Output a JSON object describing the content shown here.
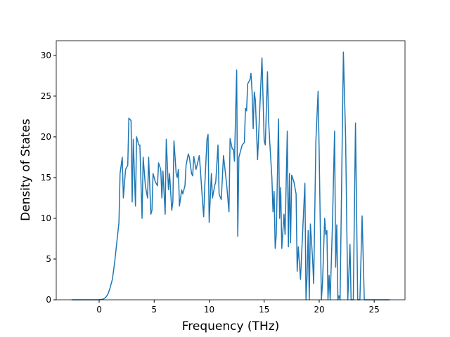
{
  "chart_data": {
    "type": "line",
    "xlabel": "Frequency (THz)",
    "ylabel": "Density of States",
    "xlim": [
      -3.9,
      27.8
    ],
    "ylim": [
      0,
      31.8
    ],
    "xticks": [
      0,
      5,
      10,
      15,
      20,
      25
    ],
    "yticks": [
      0,
      5,
      10,
      15,
      20,
      25,
      30
    ],
    "x": [
      -2.5,
      0,
      0.4,
      0.6,
      0.8,
      1.0,
      1.2,
      1.4,
      1.6,
      1.8,
      1.9,
      2.1,
      2.2,
      2.4,
      2.6,
      2.7,
      2.9,
      3.0,
      3.1,
      3.3,
      3.4,
      3.6,
      3.7,
      3.9,
      4.0,
      4.2,
      4.4,
      4.5,
      4.7,
      4.8,
      4.9,
      5.1,
      5.3,
      5.4,
      5.6,
      5.7,
      5.8,
      6.0,
      6.1,
      6.3,
      6.4,
      6.6,
      6.7,
      6.8,
      7.0,
      7.1,
      7.2,
      7.3,
      7.5,
      7.6,
      7.8,
      7.9,
      8.1,
      8.2,
      8.4,
      8.5,
      8.6,
      8.8,
      8.9,
      9.1,
      9.2,
      9.4,
      9.5,
      9.6,
      9.8,
      9.9,
      10.0,
      10.2,
      10.3,
      10.5,
      10.6,
      10.8,
      10.9,
      11.1,
      11.3,
      11.4,
      11.6,
      11.8,
      11.9,
      12.1,
      12.2,
      12.3,
      12.5,
      12.6,
      12.7,
      12.9,
      13.0,
      13.2,
      13.3,
      13.4,
      13.5,
      13.7,
      13.8,
      13.9,
      14.0,
      14.1,
      14.2,
      14.4,
      14.8,
      15.0,
      15.1,
      15.3,
      15.4,
      15.5,
      15.7,
      15.8,
      15.9,
      16.0,
      16.1,
      16.3,
      16.4,
      16.5,
      16.6,
      16.8,
      16.9,
      17.1,
      17.2,
      17.3,
      17.4,
      17.5,
      17.7,
      17.9,
      18.0,
      18.1,
      18.3,
      18.7,
      18.8,
      18.9,
      19.0,
      19.1,
      19.2,
      19.4,
      19.5,
      19.7,
      19.9,
      20.0,
      20.2,
      20.3,
      20.5,
      20.6,
      20.7,
      20.8,
      20.9,
      21.0,
      21.2,
      21.4,
      21.5,
      21.6,
      21.7,
      21.8,
      21.9,
      22.2,
      22.4,
      22.6,
      22.8,
      22.9,
      23.1,
      23.3,
      23.5,
      23.7,
      23.9,
      24.1,
      26.4
    ],
    "series": [
      {
        "color": "#1f77b4",
        "values": [
          0,
          0,
          0.1,
          0.3,
          0.7,
          1.5,
          2.5,
          4.5,
          7,
          9.5,
          15.5,
          17.5,
          12.5,
          16,
          16.5,
          22.3,
          22,
          12,
          19.7,
          11.5,
          20,
          19,
          19,
          10,
          17.5,
          14,
          12.5,
          17.5,
          10.5,
          11,
          15.5,
          14.5,
          14,
          16.8,
          16,
          12.5,
          15.8,
          10.5,
          19.7,
          13.5,
          15.5,
          11,
          12,
          19.5,
          15.5,
          15,
          16,
          11.5,
          13.5,
          13,
          14,
          16.5,
          17.9,
          17.5,
          15.5,
          15.2,
          17.6,
          16,
          16.5,
          17.7,
          16,
          12,
          10.2,
          14,
          19.7,
          20.3,
          9.5,
          15.5,
          12.5,
          14,
          14.5,
          19,
          13,
          12.3,
          17.7,
          16.5,
          14,
          10.8,
          19.8,
          18.5,
          18.5,
          17,
          28.2,
          7.8,
          17.5,
          18.5,
          19,
          19.3,
          23.5,
          23.2,
          26.5,
          27,
          27.8,
          25.5,
          21,
          25.5,
          24.5,
          17.2,
          29.7,
          19.5,
          19,
          28,
          22,
          19.5,
          15,
          10.8,
          13.3,
          6.3,
          8,
          22.2,
          10,
          13.8,
          6.3,
          10.5,
          8,
          20.7,
          6.5,
          15.5,
          7,
          15.3,
          14.5,
          13,
          3.5,
          6.5,
          2.5,
          14.3,
          0,
          3,
          8.5,
          0,
          9.3,
          5,
          2,
          19.5,
          25.6,
          18,
          0,
          2,
          10,
          8,
          8.5,
          0,
          3,
          0,
          9,
          20.7,
          4,
          9.2,
          0,
          0.5,
          0,
          30.4,
          20,
          0,
          6.8,
          0,
          0,
          21.7,
          0,
          0,
          10.3,
          0,
          0
        ]
      }
    ]
  }
}
